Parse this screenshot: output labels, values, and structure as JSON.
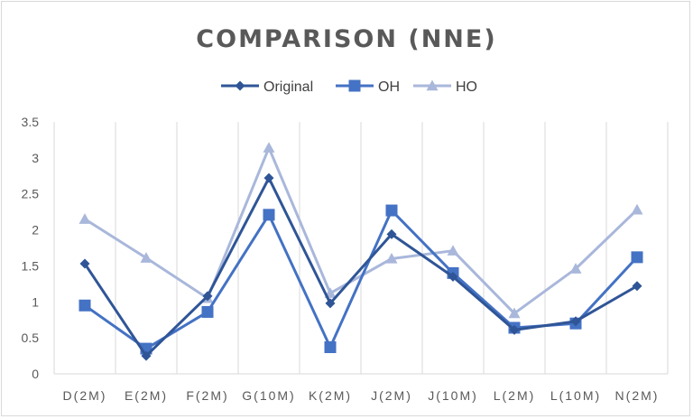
{
  "chart_data": {
    "type": "line",
    "title": "COMPARISON (NNE)",
    "xlabel": "",
    "ylabel": "",
    "categories": [
      "D(2M)",
      "E(2M)",
      "F(2M)",
      "G(10M)",
      "K(2M)",
      "J(2M)",
      "J(10M)",
      "L(2M)",
      "L(10M)",
      "N(2M)"
    ],
    "ylim": [
      0,
      3.5
    ],
    "yticks": [
      "0",
      "0.5",
      "1",
      "1.5",
      "2",
      "2.5",
      "3",
      "3.5"
    ],
    "grid": "vertical",
    "legend_position": "top",
    "series": [
      {
        "name": "Original",
        "marker": "diamond",
        "color": "#2f5597",
        "values": [
          1.53,
          0.25,
          1.08,
          2.72,
          0.98,
          1.94,
          1.35,
          0.61,
          0.73,
          1.22
        ]
      },
      {
        "name": "OH",
        "marker": "square",
        "color": "#4472c4",
        "values": [
          0.95,
          0.35,
          0.86,
          2.21,
          0.37,
          2.27,
          1.4,
          0.64,
          0.7,
          1.62
        ]
      },
      {
        "name": "HO",
        "marker": "triangle",
        "color": "#a9b7db",
        "values": [
          2.15,
          1.61,
          1.05,
          3.14,
          1.12,
          1.6,
          1.71,
          0.84,
          1.46,
          2.28
        ]
      }
    ]
  }
}
